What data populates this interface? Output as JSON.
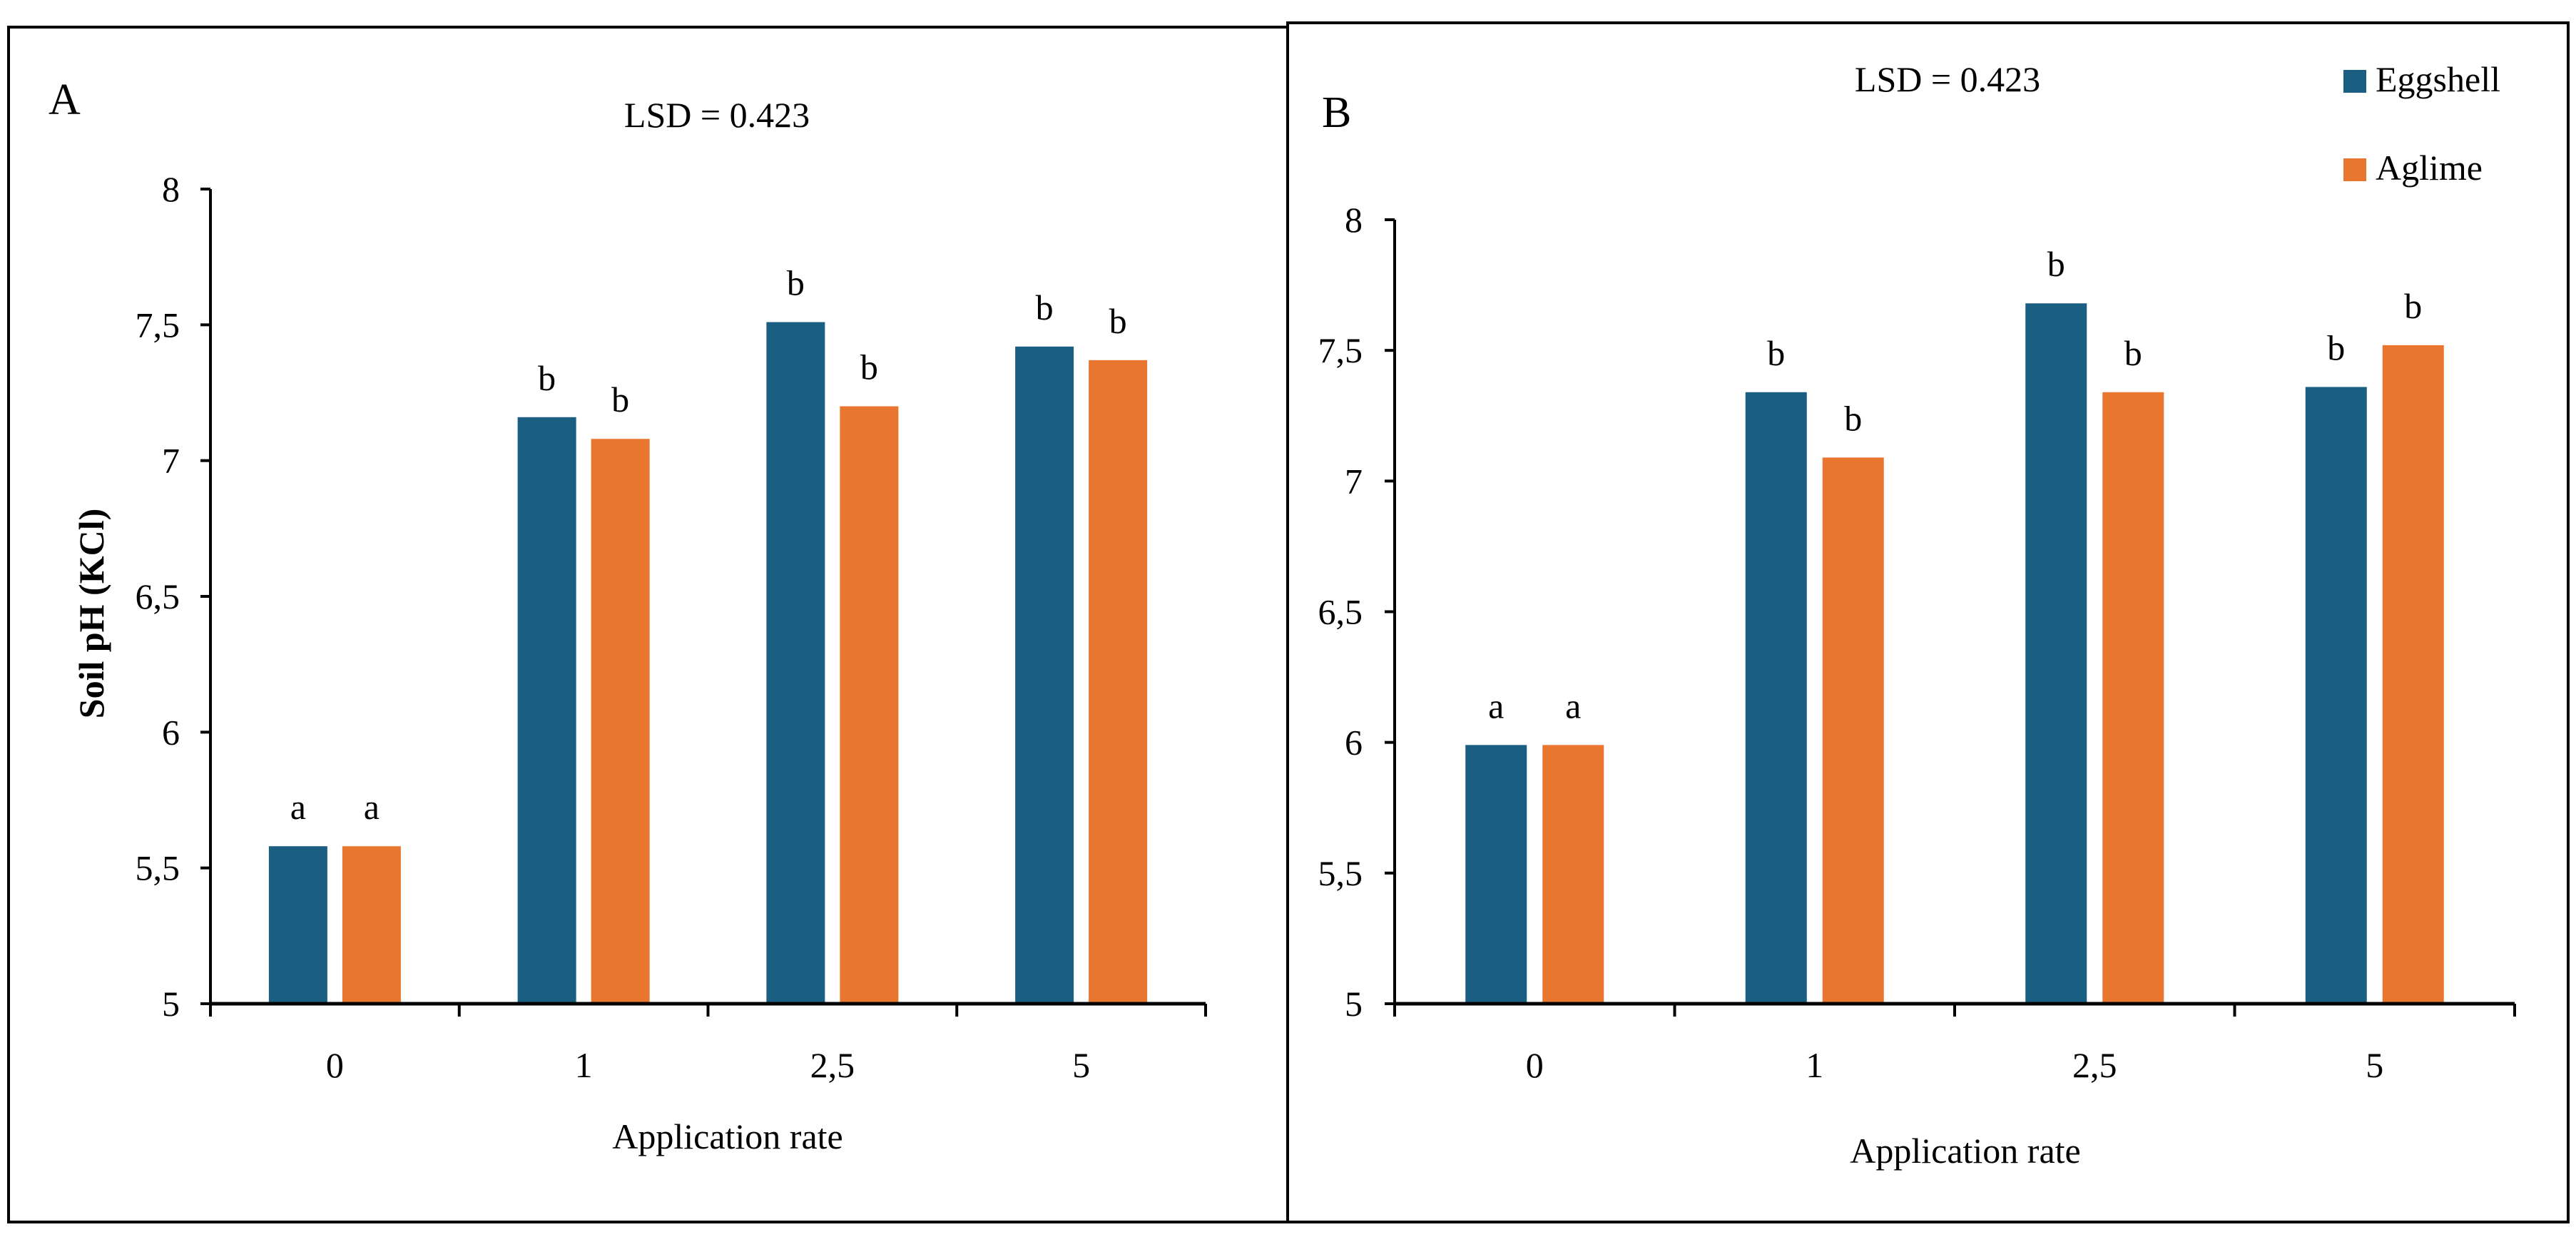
{
  "colors": {
    "eggshell": "#1a5e82",
    "aglime": "#e8762f",
    "axis": "#000000",
    "frame": "#000000",
    "background": "#ffffff"
  },
  "legend": {
    "items": [
      {
        "label": "Eggshell",
        "color": "#1a5e82"
      },
      {
        "label": "Aglime",
        "color": "#e8762f"
      }
    ]
  },
  "chart_data": [
    {
      "type": "bar",
      "panel_label": "A",
      "title": "LSD = 0.423",
      "xlabel": "Application rate",
      "ylabel": "Soil pH (KCl)",
      "ylim": [
        5,
        8
      ],
      "yticks": [
        5,
        5.5,
        6,
        6.5,
        7,
        7.5,
        8
      ],
      "ytick_labels": [
        "5",
        "5,5",
        "6",
        "6,5",
        "7",
        "7,5",
        "8"
      ],
      "categories": [
        "0",
        "1",
        "2,5",
        "5"
      ],
      "series": [
        {
          "name": "Eggshell",
          "values": [
            5.58,
            7.16,
            7.51,
            7.42
          ],
          "letters": [
            "a",
            "b",
            "b",
            "b"
          ]
        },
        {
          "name": "Aglime",
          "values": [
            5.58,
            7.08,
            7.2,
            7.37
          ],
          "letters": [
            "a",
            "b",
            "b",
            "b"
          ]
        }
      ]
    },
    {
      "type": "bar",
      "panel_label": "B",
      "title": "LSD = 0.423",
      "xlabel": "Application rate",
      "ylabel": "",
      "ylim": [
        5,
        8
      ],
      "yticks": [
        5,
        5.5,
        6,
        6.5,
        7,
        7.5,
        8
      ],
      "ytick_labels": [
        "5",
        "5,5",
        "6",
        "6,5",
        "7",
        "7,5",
        "8"
      ],
      "categories": [
        "0",
        "1",
        "2,5",
        "5"
      ],
      "series": [
        {
          "name": "Eggshell",
          "values": [
            5.99,
            7.34,
            7.68,
            7.36
          ],
          "letters": [
            "a",
            "b",
            "b",
            "b"
          ]
        },
        {
          "name": "Aglime",
          "values": [
            5.99,
            7.09,
            7.34,
            7.52
          ],
          "letters": [
            "a",
            "b",
            "b",
            "b"
          ]
        }
      ]
    }
  ]
}
